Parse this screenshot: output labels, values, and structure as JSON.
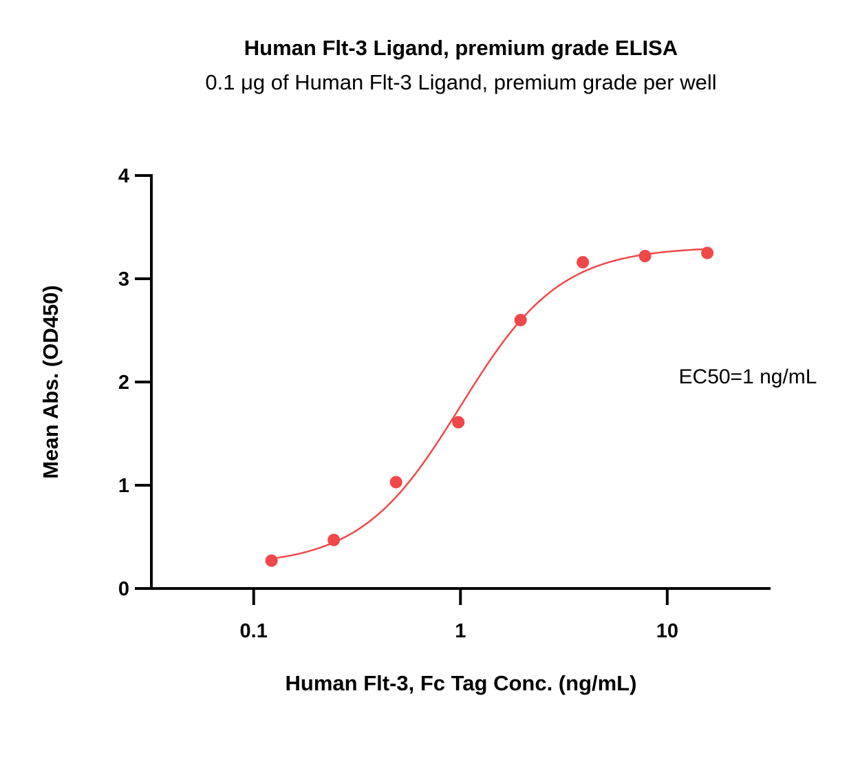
{
  "chart_data": {
    "type": "scatter",
    "title": "Human Flt-3 Ligand, premium grade ELISA",
    "subtitle": "0.1 μg of Human Flt-3 Ligand, premium grade per well",
    "xlabel": "Human Flt-3, Fc Tag Conc. (ng/mL)",
    "ylabel": "Mean Abs. (OD450)",
    "x_scale": "log",
    "xlim": [
      0.032,
      31.6
    ],
    "ylim": [
      0,
      4
    ],
    "x_ticks": [
      {
        "value": 0.1,
        "label": "0.1"
      },
      {
        "value": 1,
        "label": "1"
      },
      {
        "value": 10,
        "label": "10"
      }
    ],
    "y_ticks": [
      {
        "value": 0,
        "label": "0"
      },
      {
        "value": 1,
        "label": "1"
      },
      {
        "value": 2,
        "label": "2"
      },
      {
        "value": 3,
        "label": "3"
      },
      {
        "value": 4,
        "label": "4"
      }
    ],
    "grid": false,
    "color": "#f04848",
    "series": [
      {
        "x": [
          0.122,
          0.244,
          0.488,
          0.977,
          1.953,
          3.906,
          7.813,
          15.625
        ],
        "y": [
          0.27,
          0.47,
          1.03,
          1.61,
          2.6,
          3.16,
          3.22,
          3.25
        ]
      }
    ],
    "fit": {
      "model": "4PL",
      "bottom": 0.22,
      "top": 3.31,
      "ec50": 1.0,
      "hill": 1.8,
      "x_range": [
        0.122,
        15.625
      ]
    },
    "annotations": [
      {
        "text": "EC50=1 ng/mL"
      }
    ]
  }
}
